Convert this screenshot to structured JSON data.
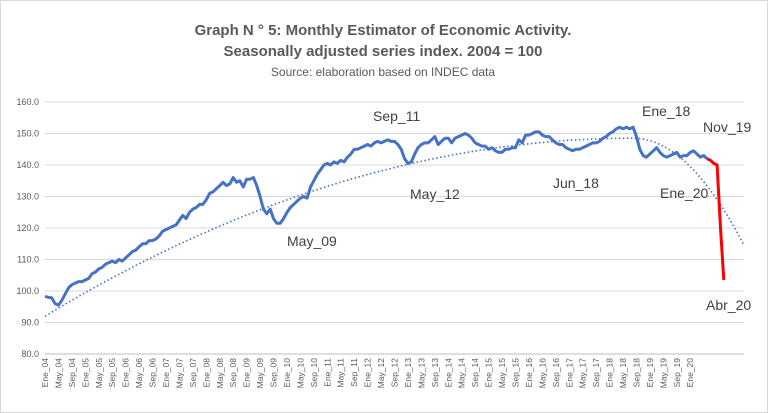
{
  "chart_data": {
    "type": "line",
    "title": "Graph N ° 5: Monthly Estimator of Economic Activity.",
    "subtitle": "Seasonally adjusted series index. 2004 = 100",
    "source": "Source: elaboration based on INDEC data",
    "ylim": [
      80,
      160
    ],
    "yticks": [
      "160.0",
      "150.0",
      "140.0",
      "130.0",
      "120.0",
      "110.0",
      "100.0",
      "90.0",
      "80.0"
    ],
    "x_tick_labels": [
      "Ene_04",
      "May_04",
      "Sep_04",
      "Ene_05",
      "May_05",
      "Sep_05",
      "Ene_06",
      "May_06",
      "Sep_06",
      "Ene_07",
      "May_07",
      "Sep_07",
      "Ene_08",
      "May_08",
      "Sep_08",
      "Ene_09",
      "May_09",
      "Sep_09",
      "Ene_10",
      "May_10",
      "Sep_10",
      "Ene_11",
      "May_11",
      "Sep_11",
      "Ene_12",
      "May_12",
      "Sep_12",
      "Ene_13",
      "May_13",
      "Sep_13",
      "Ene_14",
      "May_14",
      "Sep_14",
      "Ene_15",
      "May_15",
      "Sep_15",
      "Ene_16",
      "May_16",
      "Sep_16",
      "Ene_17",
      "May_17",
      "Sep_17",
      "Ene_18",
      "May_18",
      "Sep_18",
      "Ene_19",
      "May_19",
      "Sep_19",
      "Ene_20"
    ],
    "grid": "horizontal",
    "series": [
      {
        "name": "",
        "color": "#4472c4",
        "style": "solid",
        "values": [
          98.3,
          98.0,
          97.8,
          96.0,
          95.5,
          97.0,
          99.0,
          101.0,
          102.0,
          102.5,
          103.0,
          103.0,
          103.5,
          104.0,
          105.5,
          106.0,
          107.0,
          107.5,
          108.5,
          109.0,
          109.5,
          109.0,
          110.0,
          109.5,
          110.5,
          111.5,
          112.5,
          113.0,
          114.0,
          115.0,
          115.0,
          116.0,
          116.0,
          116.5,
          117.5,
          119.0,
          119.5,
          120.0,
          120.5,
          121.0,
          122.5,
          124.0,
          123.0,
          125.0,
          126.0,
          126.5,
          127.5,
          127.5,
          129.0,
          131.0,
          131.5,
          132.5,
          133.5,
          134.5,
          133.5,
          134.0,
          136.0,
          134.5,
          135.0,
          133.0,
          135.5,
          135.5,
          136.0,
          133.5,
          130.0,
          126.0,
          124.5,
          126.0,
          123.0,
          121.5,
          121.5,
          123.0,
          125.0,
          126.5,
          127.5,
          128.5,
          129.5,
          130.0,
          129.5,
          133.0,
          135.0,
          137.0,
          138.5,
          140.0,
          140.5,
          140.0,
          141.0,
          140.5,
          141.5,
          141.0,
          142.5,
          143.5,
          145.0,
          145.0,
          145.5,
          146.0,
          146.5,
          146.0,
          147.0,
          147.5,
          147.0,
          147.5,
          148.0,
          147.5,
          147.5,
          146.5,
          145.0,
          142.0,
          140.5,
          141.0,
          143.5,
          145.5,
          146.5,
          147.0,
          147.0,
          148.0,
          149.0,
          146.5,
          147.5,
          148.5,
          148.5,
          147.0,
          148.5,
          149.0,
          149.5,
          150.0,
          149.5,
          148.5,
          147.0,
          146.5,
          146.0,
          146.0,
          145.0,
          145.5,
          144.5,
          144.0,
          144.0,
          145.0,
          145.0,
          145.5,
          145.5,
          148.0,
          147.0,
          149.5,
          149.5,
          150.0,
          150.5,
          150.5,
          149.5,
          149.0,
          149.0,
          148.0,
          147.0,
          146.5,
          146.5,
          145.5,
          145.0,
          144.5,
          145.0,
          145.0,
          145.5,
          146.0,
          146.5,
          147.0,
          147.0,
          147.5,
          148.5,
          149.0,
          150.0,
          150.5,
          151.5,
          152.0,
          151.5,
          152.0,
          151.5,
          152.0,
          149.0,
          145.0,
          143.0,
          142.5,
          143.5,
          144.5,
          145.5,
          144.0,
          143.0,
          142.5,
          143.0,
          143.5,
          144.0,
          142.5,
          143.0,
          143.0,
          144.0,
          144.5,
          143.5,
          142.5,
          143.0,
          142.0
        ]
      },
      {
        "name": "",
        "color": "#ff0000",
        "style": "solid",
        "start_index": 197,
        "values": [
          142.0,
          141.5,
          140.5,
          140.0,
          120.0,
          103.5
        ]
      },
      {
        "name": "",
        "color": "#4472c4",
        "style": "dotted",
        "kind": "trend",
        "start_value": 92.0,
        "peak_index": 175,
        "peak_value": 148.5,
        "end_index": 208,
        "end_value": 114.5
      }
    ],
    "annotations": [
      {
        "text": "Sep_11",
        "near_index": 92
      },
      {
        "text": "May_09",
        "near_index": 65
      },
      {
        "text": "May_12",
        "near_index": 100
      },
      {
        "text": "Jun_18",
        "near_index": 174
      },
      {
        "text": "Ene_18",
        "near_index": 168
      },
      {
        "text": "Nov_19",
        "near_index": 190
      },
      {
        "text": "Ene_20",
        "near_index": 192
      },
      {
        "text": "Abr_20",
        "near_index": 202
      }
    ]
  }
}
